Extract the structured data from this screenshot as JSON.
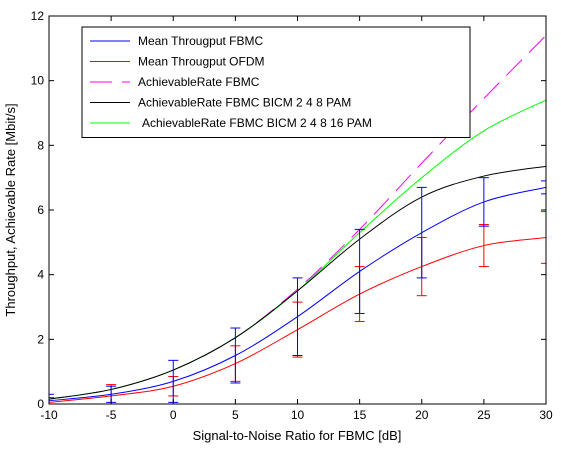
{
  "chart_data": {
    "type": "line",
    "title": "",
    "xlabel": "Signal-to-Noise Ratio for FBMC [dB]",
    "ylabel": "Throughput, Achievable Rate [Mbit/s]",
    "xlim": [
      -10,
      30
    ],
    "ylim": [
      0,
      12
    ],
    "xticks": [
      -10,
      -5,
      0,
      5,
      10,
      15,
      20,
      25,
      30
    ],
    "yticks": [
      0,
      2,
      4,
      6,
      8,
      10,
      12
    ],
    "grid": false,
    "legend_position": "top-left",
    "x": [
      -10,
      -5,
      0,
      5,
      10,
      15,
      20,
      25,
      30
    ],
    "series": [
      {
        "name": "Mean Througput FBMC",
        "color": "#0000ff",
        "dash": "solid",
        "values": [
          0.1,
          0.3,
          0.7,
          1.5,
          2.7,
          4.1,
          5.3,
          6.25,
          6.7
        ],
        "errors": [
          0.2,
          0.25,
          0.65,
          0.85,
          1.2,
          1.3,
          1.4,
          0.75,
          0.2
        ]
      },
      {
        "name": "Mean Througput OFDM",
        "color": "#ff0000",
        "dash": "solid",
        "values": [
          0.05,
          0.25,
          0.55,
          1.25,
          2.3,
          3.4,
          4.25,
          4.9,
          5.15
        ],
        "errors": [
          0.15,
          0.35,
          0.3,
          0.55,
          0.85,
          0.85,
          0.9,
          0.65,
          0.8
        ]
      },
      {
        "name": "AchievableRate FBMC",
        "color": "#ff00ff",
        "dash": "dashed",
        "values": [
          0.15,
          0.45,
          1.05,
          2.05,
          3.55,
          5.4,
          7.45,
          9.45,
          11.4
        ]
      },
      {
        "name": "AchievableRate FBMC BICM 2 4 8 PAM",
        "color": "#000000",
        "dash": "solid",
        "values": [
          0.15,
          0.45,
          1.05,
          2.05,
          3.5,
          5.1,
          6.4,
          7.05,
          7.35
        ]
      },
      {
        "name": "AchievableRate FBMC BICM 2 4 8 16 PAM",
        "color": "#00ff00",
        "dash": "solid",
        "values": [
          0.15,
          0.45,
          1.05,
          2.05,
          3.5,
          5.3,
          7.0,
          8.45,
          9.4
        ]
      }
    ]
  }
}
